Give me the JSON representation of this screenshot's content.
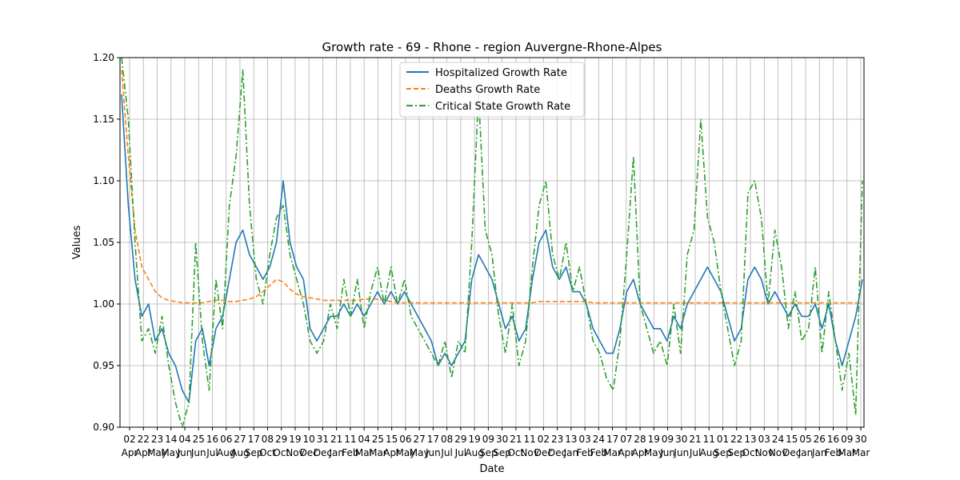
{
  "chart_data": {
    "type": "line",
    "title": "Growth rate - 69 - Rhone - region Auvergne-Rhone-Alpes",
    "xlabel": "Date",
    "ylabel": "Values",
    "ylim": [
      0.9,
      1.2
    ],
    "yticks": [
      "0.90",
      "0.95",
      "1.00",
      "1.05",
      "1.10",
      "1.15",
      "1.20"
    ],
    "grid": true,
    "legend_position": "top-center",
    "x_tick_labels": [
      {
        "day": "02",
        "month": "Apr"
      },
      {
        "day": "22",
        "month": "Apr"
      },
      {
        "day": "23",
        "month": "May"
      },
      {
        "day": "14",
        "month": "May"
      },
      {
        "day": "04",
        "month": "Jun"
      },
      {
        "day": "25",
        "month": "Jun"
      },
      {
        "day": "16",
        "month": "Jul"
      },
      {
        "day": "06",
        "month": "Aug"
      },
      {
        "day": "27",
        "month": "Aug"
      },
      {
        "day": "17",
        "month": "Sep"
      },
      {
        "day": "08",
        "month": "Oct"
      },
      {
        "day": "29",
        "month": "Oct"
      },
      {
        "day": "19",
        "month": "Nov"
      },
      {
        "day": "10",
        "month": "Dec"
      },
      {
        "day": "31",
        "month": "Dec"
      },
      {
        "day": "21",
        "month": "Jan"
      },
      {
        "day": "11",
        "month": "Feb"
      },
      {
        "day": "04",
        "month": "Mar"
      },
      {
        "day": "25",
        "month": "Mar"
      },
      {
        "day": "15",
        "month": "Apr"
      },
      {
        "day": "06",
        "month": "May"
      },
      {
        "day": "27",
        "month": "May"
      },
      {
        "day": "17",
        "month": "Jun"
      },
      {
        "day": "08",
        "month": "Jul"
      },
      {
        "day": "29",
        "month": "Jul"
      },
      {
        "day": "19",
        "month": "Aug"
      },
      {
        "day": "09",
        "month": "Sep"
      },
      {
        "day": "30",
        "month": "Sep"
      },
      {
        "day": "21",
        "month": "Oct"
      },
      {
        "day": "11",
        "month": "Nov"
      },
      {
        "day": "02",
        "month": "Dec"
      },
      {
        "day": "23",
        "month": "Dec"
      },
      {
        "day": "13",
        "month": "Jan"
      },
      {
        "day": "03",
        "month": "Feb"
      },
      {
        "day": "24",
        "month": "Feb"
      },
      {
        "day": "17",
        "month": "Mar"
      },
      {
        "day": "07",
        "month": "Apr"
      },
      {
        "day": "28",
        "month": "Apr"
      },
      {
        "day": "19",
        "month": "May"
      },
      {
        "day": "09",
        "month": "Jun"
      },
      {
        "day": "30",
        "month": "Jun"
      },
      {
        "day": "21",
        "month": "Jul"
      },
      {
        "day": "11",
        "month": "Aug"
      },
      {
        "day": "01",
        "month": "Sep"
      },
      {
        "day": "22",
        "month": "Sep"
      },
      {
        "day": "13",
        "month": "Oct"
      },
      {
        "day": "03",
        "month": "Nov"
      },
      {
        "day": "24",
        "month": "Nov"
      },
      {
        "day": "15",
        "month": "Dec"
      },
      {
        "day": "05",
        "month": "Jan"
      },
      {
        "day": "26",
        "month": "Jan"
      },
      {
        "day": "16",
        "month": "Feb"
      },
      {
        "day": "09",
        "month": "Mar"
      },
      {
        "day": "30",
        "month": "Mar"
      }
    ],
    "series": [
      {
        "name": "Hospitalized Growth Rate",
        "color": "#1f77b4",
        "dash": "solid",
        "values": [
          1.17,
          1.08,
          1.02,
          0.99,
          1.0,
          0.97,
          0.98,
          0.96,
          0.95,
          0.93,
          0.92,
          0.97,
          0.98,
          0.95,
          0.98,
          0.99,
          1.02,
          1.05,
          1.06,
          1.04,
          1.03,
          1.02,
          1.03,
          1.05,
          1.1,
          1.05,
          1.03,
          1.02,
          0.98,
          0.97,
          0.98,
          0.99,
          0.99,
          1.0,
          0.99,
          1.0,
          0.99,
          1.0,
          1.01,
          1.0,
          1.01,
          1.0,
          1.01,
          1.0,
          0.99,
          0.98,
          0.97,
          0.95,
          0.96,
          0.95,
          0.96,
          0.97,
          1.02,
          1.04,
          1.03,
          1.02,
          1.0,
          0.98,
          0.99,
          0.97,
          0.98,
          1.02,
          1.05,
          1.06,
          1.03,
          1.02,
          1.03,
          1.01,
          1.01,
          1.0,
          0.98,
          0.97,
          0.96,
          0.96,
          0.98,
          1.01,
          1.02,
          1.0,
          0.99,
          0.98,
          0.98,
          0.97,
          0.99,
          0.98,
          1.0,
          1.01,
          1.02,
          1.03,
          1.02,
          1.01,
          0.99,
          0.97,
          0.98,
          1.02,
          1.03,
          1.02,
          1.0,
          1.01,
          1.0,
          0.99,
          1.0,
          0.99,
          0.99,
          1.0,
          0.98,
          1.0,
          0.97,
          0.95,
          0.97,
          0.99,
          1.02
        ]
      },
      {
        "name": "Deaths Growth Rate",
        "color": "#ff7f0e",
        "dash": "dashed",
        "values": [
          1.19,
          1.12,
          1.06,
          1.03,
          1.02,
          1.01,
          1.005,
          1.003,
          1.002,
          1.001,
          1.001,
          1.001,
          1.001,
          1.002,
          1.003,
          1.003,
          1.002,
          1.002,
          1.003,
          1.004,
          1.006,
          1.01,
          1.015,
          1.02,
          1.018,
          1.012,
          1.008,
          1.006,
          1.005,
          1.004,
          1.003,
          1.003,
          1.003,
          1.003,
          1.003,
          1.003,
          1.004,
          1.004,
          1.004,
          1.003,
          1.002,
          1.001,
          1.001,
          1.001,
          1.001,
          1.001,
          1.001,
          1.001,
          1.001,
          1.001,
          1.001,
          1.001,
          1.001,
          1.001,
          1.001,
          1.001,
          1.001,
          1.001,
          1.001,
          1.001,
          1.001,
          1.001,
          1.002,
          1.002,
          1.002,
          1.002,
          1.002,
          1.002,
          1.002,
          1.002,
          1.001,
          1.001,
          1.001,
          1.001,
          1.001,
          1.001,
          1.001,
          1.001,
          1.001,
          1.001,
          1.001,
          1.001,
          1.001,
          1.001,
          1.001,
          1.001,
          1.001,
          1.001,
          1.001,
          1.001,
          1.001,
          1.001,
          1.001,
          1.001,
          1.001,
          1.001,
          1.001,
          1.001,
          1.001,
          1.001,
          1.001,
          1.001,
          1.001,
          1.001,
          1.001,
          1.001,
          1.001,
          1.001,
          1.001,
          1.001,
          1.001
        ]
      },
      {
        "name": "Critical State Growth Rate",
        "color": "#2ca02c",
        "dash": "dashdot",
        "values": [
          1.2,
          1.15,
          1.05,
          0.97,
          0.98,
          0.96,
          0.99,
          0.95,
          0.92,
          0.9,
          0.92,
          1.05,
          0.97,
          0.93,
          1.02,
          0.98,
          1.08,
          1.12,
          1.19,
          1.08,
          1.02,
          1.0,
          1.04,
          1.07,
          1.08,
          1.04,
          1.02,
          1.0,
          0.97,
          0.96,
          0.97,
          1.0,
          0.98,
          1.02,
          0.99,
          1.02,
          0.98,
          1.01,
          1.03,
          1.0,
          1.03,
          1.0,
          1.02,
          0.99,
          0.98,
          0.97,
          0.96,
          0.95,
          0.97,
          0.94,
          0.97,
          0.96,
          1.05,
          1.17,
          1.06,
          1.04,
          0.99,
          0.96,
          1.0,
          0.95,
          0.97,
          1.03,
          1.08,
          1.1,
          1.04,
          1.02,
          1.05,
          1.01,
          1.03,
          1.0,
          0.97,
          0.96,
          0.94,
          0.93,
          0.97,
          1.04,
          1.12,
          1.0,
          0.98,
          0.96,
          0.97,
          0.95,
          1.0,
          0.96,
          1.04,
          1.06,
          1.15,
          1.07,
          1.05,
          1.01,
          0.98,
          0.95,
          0.97,
          1.09,
          1.1,
          1.07,
          1.0,
          1.06,
          1.03,
          0.98,
          1.01,
          0.97,
          0.98,
          1.03,
          0.96,
          1.01,
          0.97,
          0.93,
          0.96,
          0.91,
          1.1
        ]
      }
    ]
  }
}
